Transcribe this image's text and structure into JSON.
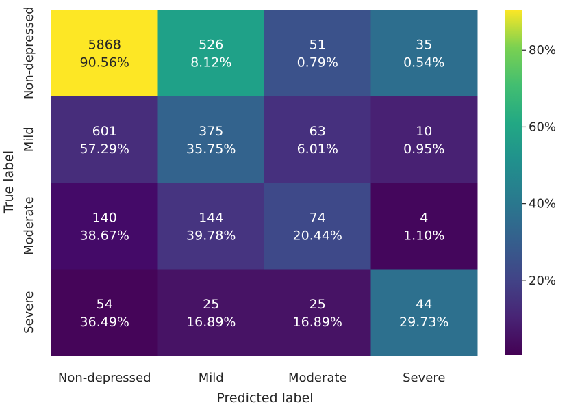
{
  "chart_data": {
    "type": "heatmap",
    "title": "",
    "xlabel": "Predicted label",
    "ylabel": "True label",
    "x_categories": [
      "Non-depressed",
      "Mild",
      "Moderate",
      "Severe"
    ],
    "y_categories": [
      "Non-depressed",
      "Mild",
      "Moderate",
      "Severe"
    ],
    "counts": [
      [
        5868,
        526,
        51,
        35
      ],
      [
        601,
        375,
        63,
        10
      ],
      [
        140,
        144,
        74,
        4
      ],
      [
        54,
        25,
        25,
        44
      ]
    ],
    "percent_labels": [
      [
        "90.56%",
        "8.12%",
        "0.79%",
        "0.54%"
      ],
      [
        "57.29%",
        "35.75%",
        "6.01%",
        "0.95%"
      ],
      [
        "38.67%",
        "39.78%",
        "20.44%",
        "1.10%"
      ],
      [
        "36.49%",
        "16.89%",
        "16.89%",
        "29.73%"
      ]
    ],
    "percent_values": [
      [
        90.56,
        8.12,
        0.79,
        0.54
      ],
      [
        57.29,
        35.75,
        6.01,
        0.95
      ],
      [
        38.67,
        39.78,
        20.44,
        1.1
      ],
      [
        36.49,
        16.89,
        16.89,
        29.73
      ]
    ],
    "cell_colors": [
      [
        "#fde725",
        "#1fa188",
        "#3b528b",
        "#2d6e8e"
      ],
      [
        "#472d7b",
        "#33638d",
        "#46307e",
        "#482173"
      ],
      [
        "#440a68",
        "#463480",
        "#3e4989",
        "#44065c"
      ],
      [
        "#450559",
        "#471365",
        "#471365",
        "#2d708e"
      ]
    ],
    "text_colors": [
      [
        "#262626",
        "#ffffff",
        "#ffffff",
        "#ffffff"
      ],
      [
        "#ffffff",
        "#ffffff",
        "#ffffff",
        "#ffffff"
      ],
      [
        "#ffffff",
        "#ffffff",
        "#ffffff",
        "#ffffff"
      ],
      [
        "#ffffff",
        "#ffffff",
        "#ffffff",
        "#ffffff"
      ]
    ],
    "colormap": "viridis",
    "colorbar": {
      "range": [
        0.54,
        90.56
      ],
      "tick_values": [
        20,
        40,
        60,
        80
      ],
      "tick_labels": [
        "20%",
        "40%",
        "60%",
        "80%"
      ]
    }
  }
}
